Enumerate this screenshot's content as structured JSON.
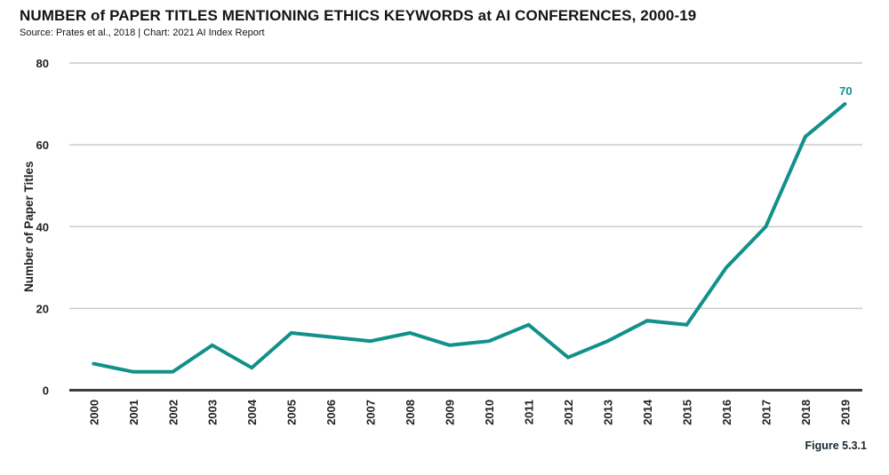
{
  "header": {
    "title": "NUMBER of PAPER TITLES MENTIONING ETHICS KEYWORDS at AI CONFERENCES, 2000-19",
    "source": "Source: Prates et al., 2018 | Chart: 2021 AI Index Report"
  },
  "footer": {
    "figure_label": "Figure 5.3.1"
  },
  "colors": {
    "line": "#11918a",
    "end_label": "#11918a",
    "grid": "#cccccc",
    "axis": "#3d3d3d",
    "tick_text": "#222222"
  },
  "chart_data": {
    "type": "line",
    "title": "NUMBER of PAPER TITLES MENTIONING ETHICS KEYWORDS at AI CONFERENCES, 2000-19",
    "x": [
      "2000",
      "2001",
      "2002",
      "2003",
      "2004",
      "2005",
      "2006",
      "2007",
      "2008",
      "2009",
      "2010",
      "2011",
      "2012",
      "2013",
      "2014",
      "2015",
      "2016",
      "2017",
      "2018",
      "2019"
    ],
    "values": [
      6.5,
      4.5,
      4.5,
      11,
      5.5,
      14,
      13,
      12,
      14,
      11,
      12,
      16,
      8,
      12,
      17,
      16,
      30,
      40,
      62,
      70
    ],
    "xlabel": "",
    "ylabel": "Number of Paper Titles",
    "yticks": [
      0,
      20,
      40,
      60,
      80
    ],
    "ylim": [
      0,
      80
    ],
    "grid": true,
    "legend": "none",
    "annotations": [
      {
        "x": "2019",
        "y": 70,
        "text": "70"
      }
    ]
  }
}
